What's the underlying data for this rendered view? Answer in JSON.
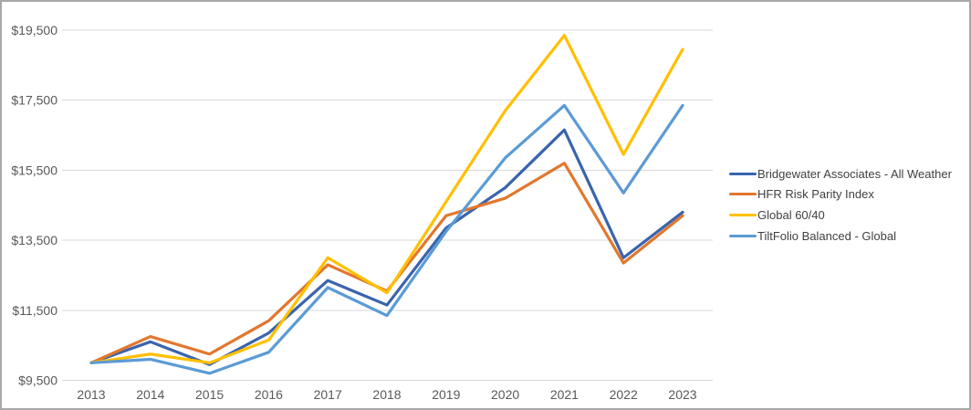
{
  "frame": {
    "border_color": "#a8a8a8",
    "background": "#ffffff"
  },
  "chart_data": {
    "type": "line",
    "title": "",
    "xlabel": "",
    "ylabel": "",
    "categories": [
      "2013",
      "2014",
      "2015",
      "2016",
      "2017",
      "2018",
      "2019",
      "2020",
      "2021",
      "2022",
      "2023"
    ],
    "series": [
      {
        "name": "Bridgewater Associates - All Weather",
        "color": "#3A64AD",
        "values": [
          10000,
          10600,
          9950,
          10850,
          12350,
          11650,
          13850,
          15000,
          16650,
          13000,
          14300
        ]
      },
      {
        "name": "HFR Risk Parity Index",
        "color": "#E2772E",
        "values": [
          10000,
          10750,
          10250,
          11200,
          12800,
          12050,
          14200,
          14700,
          15700,
          12850,
          14200
        ]
      },
      {
        "name": "Global 60/40",
        "color": "#FFC000",
        "values": [
          10000,
          10250,
          10000,
          10650,
          13000,
          12000,
          14600,
          17200,
          19350,
          15950,
          18950
        ]
      },
      {
        "name": "TiltFolio Balanced - Global",
        "color": "#5B9BD5",
        "values": [
          10000,
          10100,
          9700,
          10300,
          12150,
          11350,
          13750,
          15850,
          17350,
          14850,
          17350
        ]
      }
    ],
    "y_tick_labels": [
      "$9,500",
      "$11,500",
      "$13,500",
      "$15,500",
      "$17,500",
      "$19,500"
    ],
    "y_tick_values": [
      9500,
      11500,
      13500,
      15500,
      17500,
      19500
    ],
    "ylim": [
      9500,
      19966
    ],
    "grid": "horizontal",
    "gridline_color": "#D9D9D9",
    "axis_label_color": "#595959",
    "legend": {
      "position": "right",
      "text_color": "#404040"
    }
  }
}
